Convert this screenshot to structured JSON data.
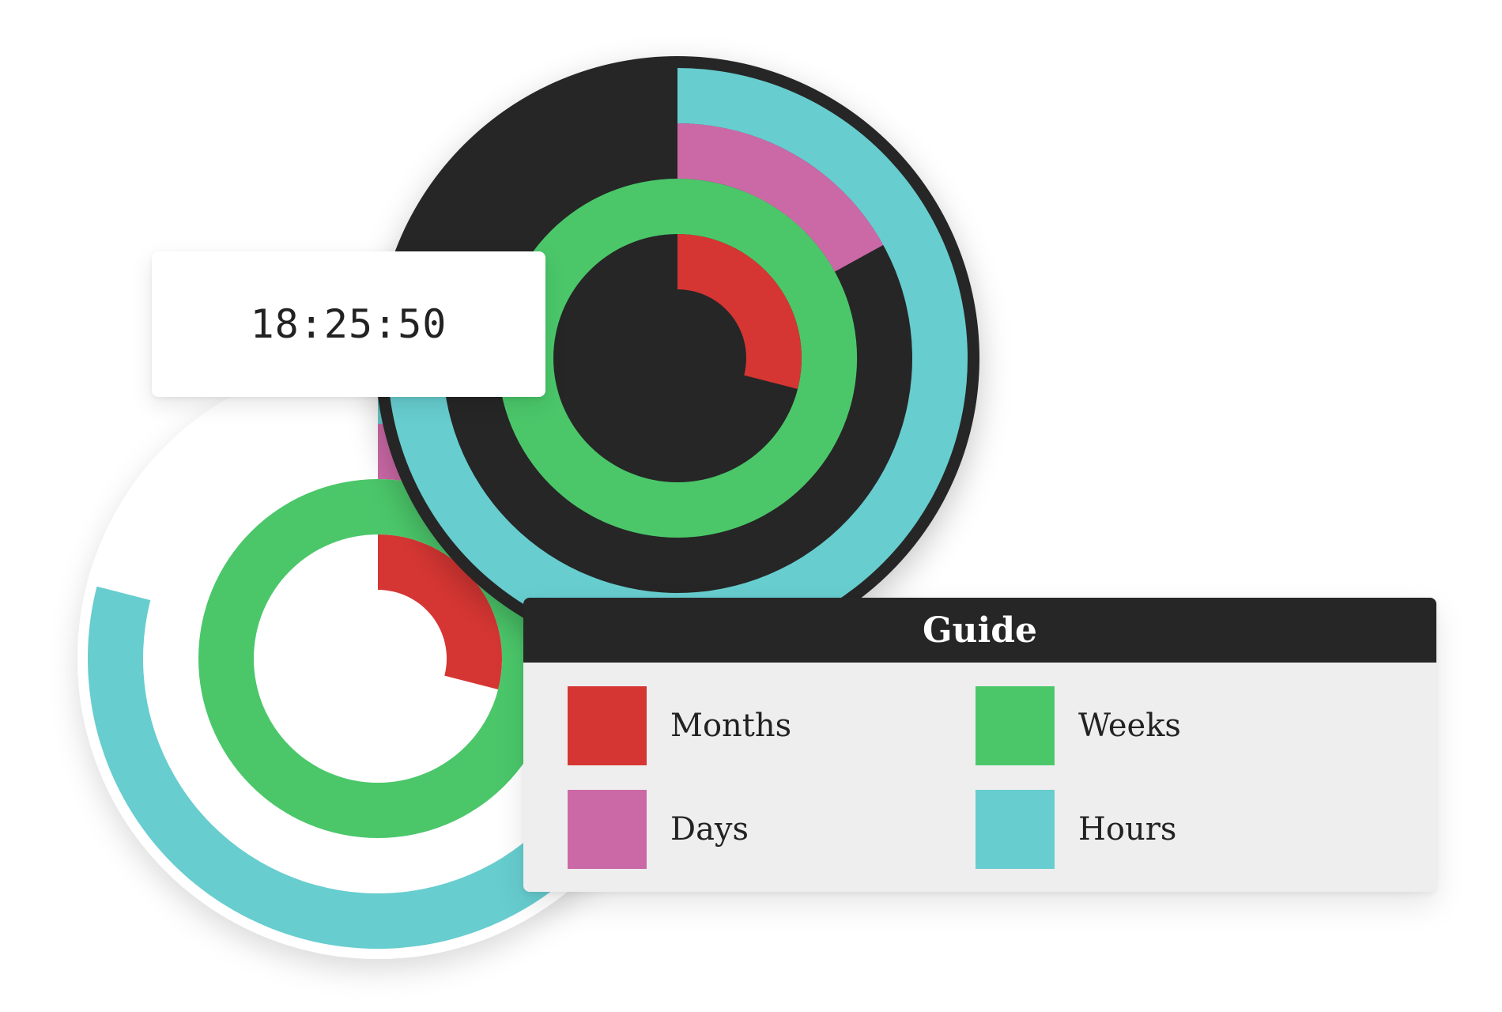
{
  "clock": {
    "time": "18:25:50"
  },
  "guide": {
    "title": "Guide",
    "items": [
      {
        "label": "Months",
        "color": "#d63633"
      },
      {
        "label": "Weeks",
        "color": "#4bc76a"
      },
      {
        "label": "Days",
        "color": "#cb69a6"
      },
      {
        "label": "Hours",
        "color": "#67cdcf"
      }
    ]
  },
  "colors": {
    "dark_face": "#262626",
    "light_face": "#ffffff",
    "months": "#d63633",
    "weeks": "#4bc76a",
    "days": "#cb69a6",
    "hours": "#67cdcf"
  },
  "chart_data": {
    "type": "radial-ring",
    "rings": [
      "Months",
      "Weeks",
      "Days",
      "Hours"
    ],
    "progress": [
      {
        "name": "Months",
        "fraction": 0.29
      },
      {
        "name": "Weeks",
        "fraction": 1.0
      },
      {
        "name": "Days",
        "fraction": 0.17
      },
      {
        "name": "Hours",
        "fraction": 0.79
      }
    ]
  }
}
